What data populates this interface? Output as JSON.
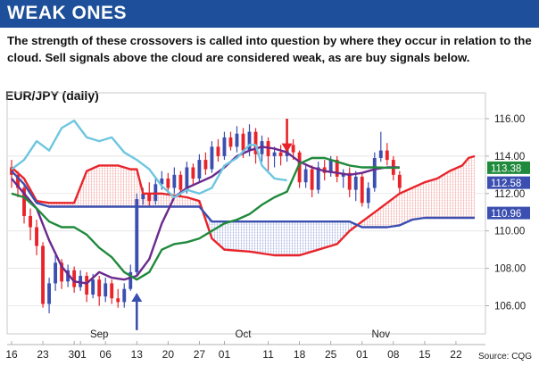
{
  "header": {
    "title": "WEAK ONES"
  },
  "description": "The strength of these crossovers is called into question by where they occur in relation to the cloud. Sell signals above the cloud are considered weak, as are buy signals below.",
  "source": "Source: CQG",
  "colors": {
    "header_bg": "#1d4f9a",
    "span_a": "#e8242a",
    "span_b": "#3b4fb0",
    "tenkan": "#6b2a8c",
    "kijun": "#1f8a3c",
    "chikou": "#6ec6e0",
    "candle_up": "#3b4fb0",
    "candle_down": "#e8242a"
  },
  "chart_data": {
    "type": "line",
    "title": "EUR/JPY (daily)",
    "ylim": [
      104.5,
      117
    ],
    "y_ticks": [
      106,
      108,
      110,
      112,
      114,
      116
    ],
    "y_tick_labels": [
      "106.00",
      "108.00",
      "110.00",
      "112.00",
      "114.00",
      "116.00"
    ],
    "x_labels": [
      "16",
      "23",
      "30",
      "01",
      "06",
      "13",
      "20",
      "27",
      "01",
      "11",
      "18",
      "25",
      "01",
      "08",
      "15",
      "22"
    ],
    "x_label_index": [
      0,
      5,
      10,
      11,
      15,
      20,
      25,
      30,
      34,
      41,
      46,
      51,
      56,
      61,
      66,
      71
    ],
    "month_labels": [
      {
        "label": "Sep",
        "index": 14
      },
      {
        "label": "Oct",
        "index": 37
      },
      {
        "label": "Nov",
        "index": 59
      }
    ],
    "x_count": 76,
    "price_labels": [
      {
        "value": 113.38,
        "text": "113.38",
        "color": "#1f8a3c"
      },
      {
        "value": 112.58,
        "text": "112.58",
        "color": "#3b4fb0"
      },
      {
        "value": 110.96,
        "text": "110.96",
        "color": "#3b4fb0"
      }
    ],
    "series": [
      {
        "key": "span_a",
        "color": "#e8242a",
        "width": 2.4,
        "points": [
          [
            0,
            113.4
          ],
          [
            2,
            112.8
          ],
          [
            4,
            111.6
          ],
          [
            6,
            111.5
          ],
          [
            10,
            111.5
          ],
          [
            12,
            113.2
          ],
          [
            14,
            113.5
          ],
          [
            17,
            113.5
          ],
          [
            19,
            113.3
          ],
          [
            20,
            113.3
          ],
          [
            21,
            112.0
          ],
          [
            24,
            112.0
          ],
          [
            28,
            111.8
          ],
          [
            30,
            111.6
          ],
          [
            32,
            109.6
          ],
          [
            34,
            109.0
          ],
          [
            38,
            108.9
          ],
          [
            42,
            108.7
          ],
          [
            46,
            108.7
          ],
          [
            48,
            108.9
          ],
          [
            52,
            109.3
          ],
          [
            54,
            110.0
          ],
          [
            56,
            110.5
          ],
          [
            58,
            111.0
          ],
          [
            60,
            111.5
          ],
          [
            62,
            112.0
          ],
          [
            64,
            112.3
          ],
          [
            66,
            112.6
          ],
          [
            68,
            112.8
          ],
          [
            70,
            113.2
          ],
          [
            72,
            113.5
          ],
          [
            73,
            113.9
          ],
          [
            74,
            114.0
          ]
        ]
      },
      {
        "key": "span_b",
        "color": "#3b4fb0",
        "width": 2.4,
        "points": [
          [
            0,
            113.2
          ],
          [
            2,
            112.5
          ],
          [
            4,
            111.5
          ],
          [
            6,
            111.3
          ],
          [
            10,
            111.3
          ],
          [
            12,
            111.3
          ],
          [
            14,
            111.3
          ],
          [
            17,
            111.3
          ],
          [
            20,
            111.3
          ],
          [
            24,
            111.3
          ],
          [
            28,
            111.3
          ],
          [
            30,
            111.3
          ],
          [
            32,
            110.5
          ],
          [
            34,
            110.5
          ],
          [
            38,
            110.5
          ],
          [
            42,
            110.5
          ],
          [
            46,
            110.5
          ],
          [
            50,
            110.5
          ],
          [
            52,
            110.5
          ],
          [
            54,
            110.5
          ],
          [
            56,
            110.2
          ],
          [
            58,
            110.2
          ],
          [
            60,
            110.2
          ],
          [
            62,
            110.3
          ],
          [
            64,
            110.6
          ],
          [
            66,
            110.7
          ],
          [
            68,
            110.7
          ],
          [
            70,
            110.7
          ],
          [
            72,
            110.7
          ],
          [
            74,
            110.7
          ]
        ]
      },
      {
        "key": "tenkan",
        "color": "#6b2a8c",
        "width": 2.4,
        "points": [
          [
            0,
            112.8
          ],
          [
            2,
            112.0
          ],
          [
            4,
            111.2
          ],
          [
            6,
            109.5
          ],
          [
            8,
            108.1
          ],
          [
            10,
            107.3
          ],
          [
            12,
            107.2
          ],
          [
            14,
            107.8
          ],
          [
            16,
            107.5
          ],
          [
            18,
            107.4
          ],
          [
            20,
            107.6
          ],
          [
            22,
            108.5
          ],
          [
            24,
            110.4
          ],
          [
            26,
            111.8
          ],
          [
            28,
            112.3
          ],
          [
            30,
            112.6
          ],
          [
            32,
            112.9
          ],
          [
            34,
            113.4
          ],
          [
            36,
            114.0
          ],
          [
            38,
            114.3
          ],
          [
            40,
            114.5
          ],
          [
            42,
            114.4
          ],
          [
            44,
            114.2
          ],
          [
            46,
            113.7
          ],
          [
            48,
            113.4
          ],
          [
            50,
            113.2
          ],
          [
            52,
            113.1
          ],
          [
            54,
            113.0
          ],
          [
            56,
            113.1
          ],
          [
            58,
            113.3
          ],
          [
            60,
            113.4
          ],
          [
            62,
            113.4
          ]
        ]
      },
      {
        "key": "kijun",
        "color": "#1f8a3c",
        "width": 2.4,
        "points": [
          [
            0,
            112.0
          ],
          [
            2,
            111.8
          ],
          [
            4,
            111.2
          ],
          [
            6,
            110.5
          ],
          [
            8,
            110.2
          ],
          [
            10,
            110.2
          ],
          [
            12,
            109.8
          ],
          [
            14,
            109.1
          ],
          [
            16,
            108.6
          ],
          [
            18,
            107.8
          ],
          [
            20,
            107.4
          ],
          [
            22,
            107.8
          ],
          [
            24,
            109.0
          ],
          [
            26,
            109.3
          ],
          [
            28,
            109.4
          ],
          [
            30,
            109.6
          ],
          [
            32,
            110.0
          ],
          [
            34,
            110.4
          ],
          [
            36,
            110.6
          ],
          [
            38,
            110.9
          ],
          [
            40,
            111.4
          ],
          [
            42,
            111.8
          ],
          [
            44,
            112.1
          ],
          [
            46,
            113.6
          ],
          [
            48,
            113.9
          ],
          [
            50,
            113.9
          ],
          [
            52,
            113.7
          ],
          [
            54,
            113.5
          ],
          [
            56,
            113.4
          ],
          [
            58,
            113.4
          ],
          [
            60,
            113.38
          ],
          [
            62,
            113.38
          ]
        ]
      },
      {
        "key": "chikou",
        "color": "#6ec6e0",
        "width": 2.4,
        "points": [
          [
            0,
            113.3
          ],
          [
            2,
            113.8
          ],
          [
            4,
            114.8
          ],
          [
            6,
            114.3
          ],
          [
            8,
            115.5
          ],
          [
            10,
            115.9
          ],
          [
            12,
            115.0
          ],
          [
            14,
            114.8
          ],
          [
            16,
            115.0
          ],
          [
            18,
            114.2
          ],
          [
            20,
            113.8
          ],
          [
            22,
            113.3
          ],
          [
            24,
            112.4
          ],
          [
            26,
            111.8
          ],
          [
            28,
            112.2
          ],
          [
            30,
            112.0
          ],
          [
            32,
            112.3
          ],
          [
            34,
            113.5
          ],
          [
            36,
            113.9
          ],
          [
            38,
            114.6
          ],
          [
            39,
            114.6
          ],
          [
            40,
            113.5
          ],
          [
            42,
            112.8
          ],
          [
            44,
            112.7
          ]
        ]
      }
    ],
    "candles": [
      {
        "i": 0,
        "o": 113.4,
        "c": 113.0,
        "h": 113.8,
        "l": 112.3
      },
      {
        "i": 1,
        "o": 113.0,
        "c": 112.3,
        "h": 113.2,
        "l": 111.8
      },
      {
        "i": 2,
        "o": 112.3,
        "c": 110.8,
        "h": 112.5,
        "l": 110.4
      },
      {
        "i": 3,
        "o": 110.8,
        "c": 110.2,
        "h": 111.2,
        "l": 109.5
      },
      {
        "i": 4,
        "o": 110.2,
        "c": 109.2,
        "h": 110.6,
        "l": 108.7
      },
      {
        "i": 5,
        "o": 109.2,
        "c": 106.1,
        "h": 109.4,
        "l": 105.9
      },
      {
        "i": 6,
        "o": 106.1,
        "c": 107.2,
        "h": 107.5,
        "l": 105.6
      },
      {
        "i": 7,
        "o": 107.2,
        "c": 108.3,
        "h": 108.7,
        "l": 106.8
      },
      {
        "i": 8,
        "o": 108.3,
        "c": 107.3,
        "h": 108.5,
        "l": 106.9
      },
      {
        "i": 9,
        "o": 107.3,
        "c": 107.9,
        "h": 108.2,
        "l": 107.0
      },
      {
        "i": 10,
        "o": 107.9,
        "c": 107.0,
        "h": 108.1,
        "l": 106.7
      },
      {
        "i": 11,
        "o": 107.0,
        "c": 107.6,
        "h": 107.9,
        "l": 106.8
      },
      {
        "i": 12,
        "o": 107.6,
        "c": 106.6,
        "h": 107.8,
        "l": 106.2
      },
      {
        "i": 13,
        "o": 106.6,
        "c": 107.4,
        "h": 107.7,
        "l": 106.4
      },
      {
        "i": 14,
        "o": 107.4,
        "c": 106.5,
        "h": 107.6,
        "l": 106.0
      },
      {
        "i": 15,
        "o": 106.5,
        "c": 107.2,
        "h": 107.5,
        "l": 106.2
      },
      {
        "i": 16,
        "o": 107.2,
        "c": 106.4,
        "h": 107.4,
        "l": 106.1
      },
      {
        "i": 17,
        "o": 106.4,
        "c": 106.2,
        "h": 106.9,
        "l": 105.9
      },
      {
        "i": 18,
        "o": 106.2,
        "c": 106.9,
        "h": 107.2,
        "l": 105.9
      },
      {
        "i": 19,
        "o": 106.9,
        "c": 107.8,
        "h": 108.2,
        "l": 106.8
      },
      {
        "i": 20,
        "o": 107.8,
        "c": 111.7,
        "h": 112.0,
        "l": 107.6
      },
      {
        "i": 21,
        "o": 111.7,
        "c": 112.0,
        "h": 112.3,
        "l": 111.4
      },
      {
        "i": 22,
        "o": 112.0,
        "c": 111.6,
        "h": 112.6,
        "l": 111.3
      },
      {
        "i": 23,
        "o": 111.6,
        "c": 112.5,
        "h": 112.9,
        "l": 111.4
      },
      {
        "i": 24,
        "o": 112.5,
        "c": 112.8,
        "h": 113.2,
        "l": 112.2
      },
      {
        "i": 25,
        "o": 112.8,
        "c": 112.3,
        "h": 113.1,
        "l": 111.9
      },
      {
        "i": 26,
        "o": 112.3,
        "c": 113.0,
        "h": 113.4,
        "l": 112.0
      },
      {
        "i": 27,
        "o": 113.0,
        "c": 112.2,
        "h": 113.2,
        "l": 111.9
      },
      {
        "i": 28,
        "o": 112.2,
        "c": 113.4,
        "h": 113.7,
        "l": 112.0
      },
      {
        "i": 29,
        "o": 113.4,
        "c": 112.8,
        "h": 113.6,
        "l": 112.4
      },
      {
        "i": 30,
        "o": 112.8,
        "c": 113.8,
        "h": 114.1,
        "l": 112.6
      },
      {
        "i": 31,
        "o": 113.8,
        "c": 113.3,
        "h": 114.2,
        "l": 113.0
      },
      {
        "i": 32,
        "o": 113.3,
        "c": 114.5,
        "h": 114.8,
        "l": 113.1
      },
      {
        "i": 33,
        "o": 114.5,
        "c": 114.0,
        "h": 114.9,
        "l": 113.7
      },
      {
        "i": 34,
        "o": 114.0,
        "c": 115.0,
        "h": 115.3,
        "l": 113.8
      },
      {
        "i": 35,
        "o": 115.0,
        "c": 114.5,
        "h": 115.3,
        "l": 114.3
      },
      {
        "i": 36,
        "o": 114.5,
        "c": 115.2,
        "h": 115.6,
        "l": 114.2
      },
      {
        "i": 37,
        "o": 115.2,
        "c": 114.3,
        "h": 115.5,
        "l": 113.9
      },
      {
        "i": 38,
        "o": 114.3,
        "c": 115.3,
        "h": 115.7,
        "l": 114.0
      },
      {
        "i": 39,
        "o": 115.3,
        "c": 114.1,
        "h": 115.5,
        "l": 113.6
      },
      {
        "i": 40,
        "o": 114.1,
        "c": 114.8,
        "h": 115.1,
        "l": 113.7
      },
      {
        "i": 41,
        "o": 114.8,
        "c": 114.0,
        "h": 115.0,
        "l": 113.2
      },
      {
        "i": 42,
        "o": 114.0,
        "c": 114.2,
        "h": 114.5,
        "l": 113.4
      },
      {
        "i": 43,
        "o": 114.2,
        "c": 114.0,
        "h": 114.6,
        "l": 113.5
      },
      {
        "i": 44,
        "o": 114.0,
        "c": 114.6,
        "h": 114.8,
        "l": 113.7
      },
      {
        "i": 45,
        "o": 114.6,
        "c": 114.2,
        "h": 114.9,
        "l": 113.8
      },
      {
        "i": 46,
        "o": 114.2,
        "c": 112.6,
        "h": 114.3,
        "l": 112.3
      },
      {
        "i": 47,
        "o": 112.6,
        "c": 113.3,
        "h": 113.6,
        "l": 112.3
      },
      {
        "i": 48,
        "o": 113.3,
        "c": 112.2,
        "h": 113.5,
        "l": 111.8
      },
      {
        "i": 49,
        "o": 112.2,
        "c": 113.4,
        "h": 113.7,
        "l": 112.0
      },
      {
        "i": 50,
        "o": 113.4,
        "c": 113.1,
        "h": 113.8,
        "l": 112.7
      },
      {
        "i": 51,
        "o": 113.1,
        "c": 113.8,
        "h": 114.0,
        "l": 112.9
      },
      {
        "i": 52,
        "o": 113.8,
        "c": 112.9,
        "h": 114.0,
        "l": 112.6
      },
      {
        "i": 53,
        "o": 112.9,
        "c": 113.1,
        "h": 113.3,
        "l": 112.3
      },
      {
        "i": 54,
        "o": 113.1,
        "c": 112.2,
        "h": 113.4,
        "l": 111.8
      },
      {
        "i": 55,
        "o": 112.2,
        "c": 112.9,
        "h": 113.2,
        "l": 111.6
      },
      {
        "i": 56,
        "o": 112.9,
        "c": 111.5,
        "h": 113.1,
        "l": 111.3
      },
      {
        "i": 57,
        "o": 111.5,
        "c": 112.3,
        "h": 112.6,
        "l": 111.2
      },
      {
        "i": 58,
        "o": 112.3,
        "c": 113.9,
        "h": 114.2,
        "l": 112.1
      },
      {
        "i": 59,
        "o": 113.9,
        "c": 114.3,
        "h": 115.3,
        "l": 113.7
      },
      {
        "i": 60,
        "o": 114.3,
        "c": 113.8,
        "h": 114.7,
        "l": 113.5
      },
      {
        "i": 61,
        "o": 113.8,
        "c": 113.0,
        "h": 114.0,
        "l": 112.7
      },
      {
        "i": 62,
        "o": 113.0,
        "c": 112.3,
        "h": 113.2,
        "l": 112.0
      }
    ],
    "annotations": [
      {
        "type": "sell-arrow",
        "index": 44,
        "from": 116.0,
        "to": 114.3
      },
      {
        "type": "buy-arrow",
        "index": 20,
        "from": 104.7,
        "to": 106.6
      }
    ]
  }
}
